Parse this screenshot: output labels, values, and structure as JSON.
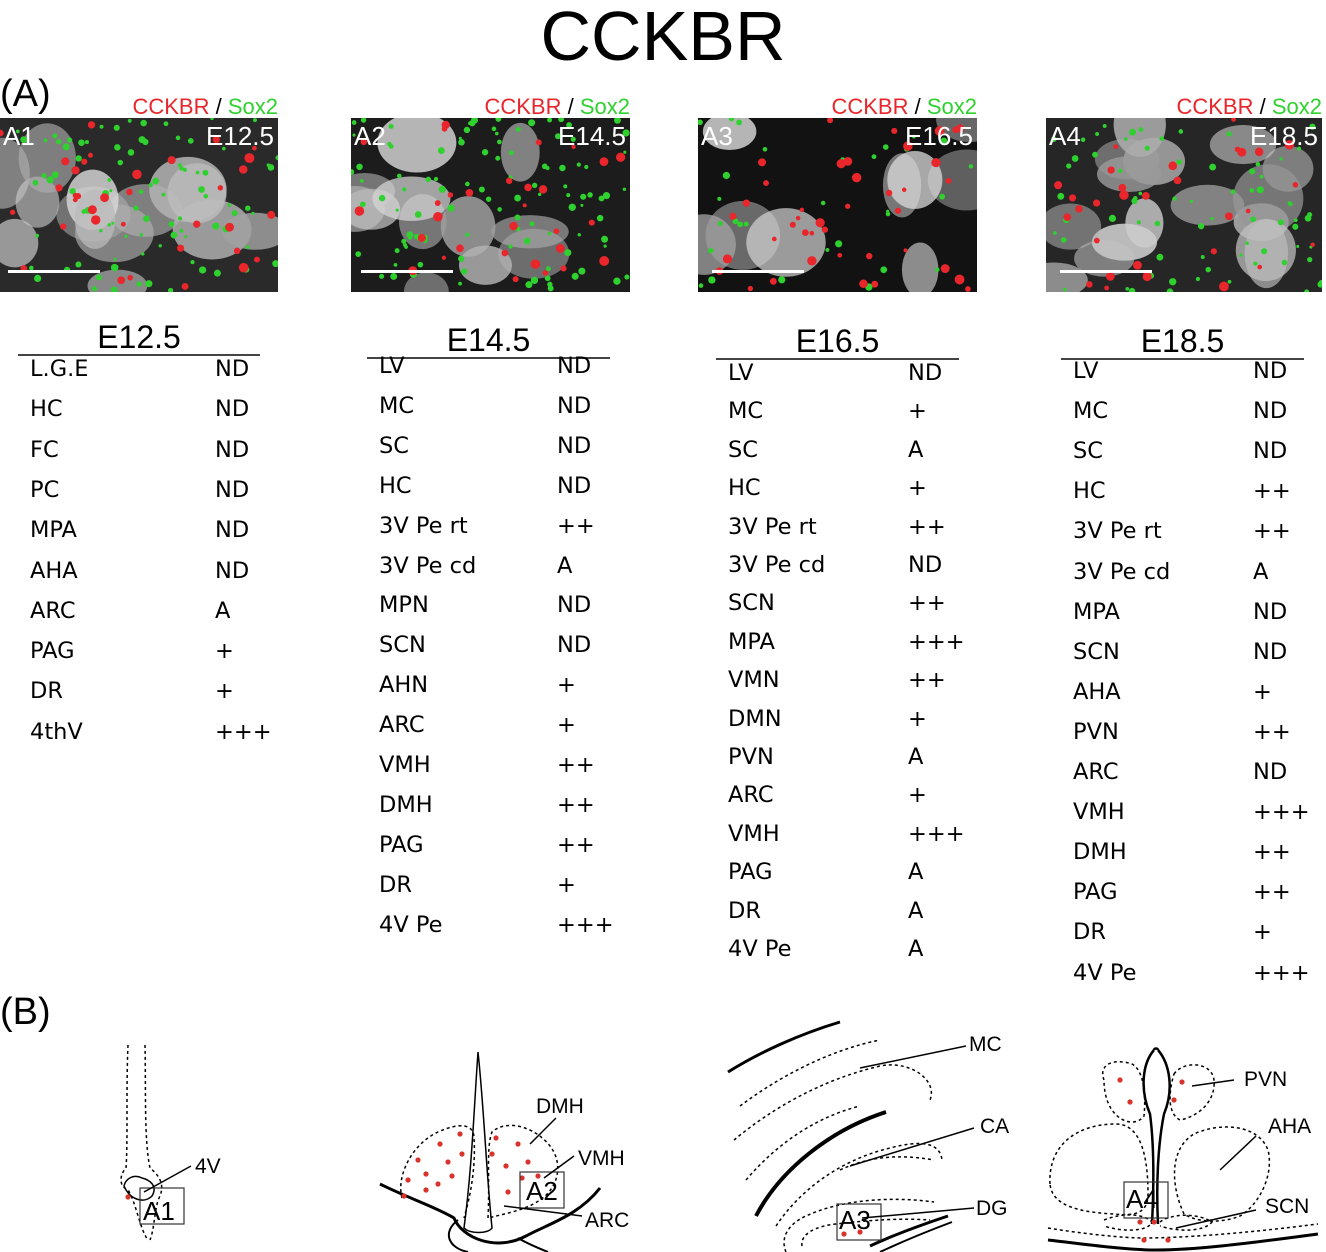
{
  "title": "CCKBR",
  "panel_a_label": "(A)",
  "panel_b_label": "(B)",
  "legend": {
    "marker1": "CCKBR",
    "separator": "/",
    "marker2": "Sox2",
    "marker1_color": "#e8262b",
    "marker2_color": "#2fd12f"
  },
  "micrographs": [
    {
      "id": "A1",
      "stage": "E12.5"
    },
    {
      "id": "A2",
      "stage": "E14.5"
    },
    {
      "id": "A3",
      "stage": "E16.5"
    },
    {
      "id": "A4",
      "stage": "E18.5"
    }
  ],
  "tables": [
    {
      "stage": "E12.5",
      "rows": [
        {
          "region": "L.G.E",
          "level": "ND"
        },
        {
          "region": "HC",
          "level": "ND"
        },
        {
          "region": "FC",
          "level": "ND"
        },
        {
          "region": "PC",
          "level": "ND"
        },
        {
          "region": "MPA",
          "level": "ND"
        },
        {
          "region": "AHA",
          "level": "ND"
        },
        {
          "region": "ARC",
          "level": "A"
        },
        {
          "region": "PAG",
          "level": "+"
        },
        {
          "region": "DR",
          "level": "+"
        },
        {
          "region": "4thV",
          "level": "+++"
        }
      ]
    },
    {
      "stage": "E14.5",
      "rows": [
        {
          "region": "LV",
          "level": "ND"
        },
        {
          "region": "MC",
          "level": "ND"
        },
        {
          "region": "SC",
          "level": "ND"
        },
        {
          "region": "HC",
          "level": "ND"
        },
        {
          "region": "3V Pe rt",
          "level": "++"
        },
        {
          "region": "3V Pe cd",
          "level": "A"
        },
        {
          "region": "MPN",
          "level": "ND"
        },
        {
          "region": "SCN",
          "level": "ND"
        },
        {
          "region": "AHN",
          "level": "+"
        },
        {
          "region": "ARC",
          "level": "+"
        },
        {
          "region": "VMH",
          "level": "++"
        },
        {
          "region": "DMH",
          "level": "++"
        },
        {
          "region": "PAG",
          "level": "++"
        },
        {
          "region": "DR",
          "level": "+"
        },
        {
          "region": "4V Pe",
          "level": "+++"
        }
      ]
    },
    {
      "stage": "E16.5",
      "rows": [
        {
          "region": "LV",
          "level": "ND"
        },
        {
          "region": "MC",
          "level": "+"
        },
        {
          "region": "SC",
          "level": "A"
        },
        {
          "region": "HC",
          "level": "+"
        },
        {
          "region": "3V Pe rt",
          "level": "++"
        },
        {
          "region": "3V Pe cd",
          "level": "ND"
        },
        {
          "region": "SCN",
          "level": "++"
        },
        {
          "region": "MPA",
          "level": "+++"
        },
        {
          "region": "VMN",
          "level": "++"
        },
        {
          "region": "DMN",
          "level": "+"
        },
        {
          "region": "PVN",
          "level": "A"
        },
        {
          "region": "ARC",
          "level": "+"
        },
        {
          "region": "VMH",
          "level": "+++"
        },
        {
          "region": "PAG",
          "level": "A"
        },
        {
          "region": "DR",
          "level": "A"
        },
        {
          "region": "4V Pe",
          "level": "A"
        }
      ]
    },
    {
      "stage": "E18.5",
      "rows": [
        {
          "region": "LV",
          "level": "ND"
        },
        {
          "region": "MC",
          "level": "ND"
        },
        {
          "region": "SC",
          "level": "ND"
        },
        {
          "region": "HC",
          "level": "++"
        },
        {
          "region": "3V Pe rt",
          "level": "++"
        },
        {
          "region": "3V Pe cd",
          "level": "A"
        },
        {
          "region": "MPA",
          "level": "ND"
        },
        {
          "region": "SCN",
          "level": "ND"
        },
        {
          "region": "AHA",
          "level": "+"
        },
        {
          "region": "PVN",
          "level": "++"
        },
        {
          "region": "ARC",
          "level": "ND"
        },
        {
          "region": "VMH",
          "level": "+++"
        },
        {
          "region": "DMH",
          "level": "++"
        },
        {
          "region": "PAG",
          "level": "++"
        },
        {
          "region": "DR",
          "level": "+"
        },
        {
          "region": "4V Pe",
          "level": "+++"
        }
      ]
    }
  ],
  "diagrams": {
    "d1": {
      "box": "A1",
      "labels": [
        "4V"
      ]
    },
    "d2": {
      "box": "A2",
      "labels": [
        "DMH",
        "VMH",
        "ARC"
      ]
    },
    "d3": {
      "box": "A3",
      "labels": [
        "MC",
        "CA",
        "DG"
      ]
    },
    "d4": {
      "box": "A4",
      "labels": [
        "PVN",
        "AHA",
        "SCN"
      ]
    }
  }
}
